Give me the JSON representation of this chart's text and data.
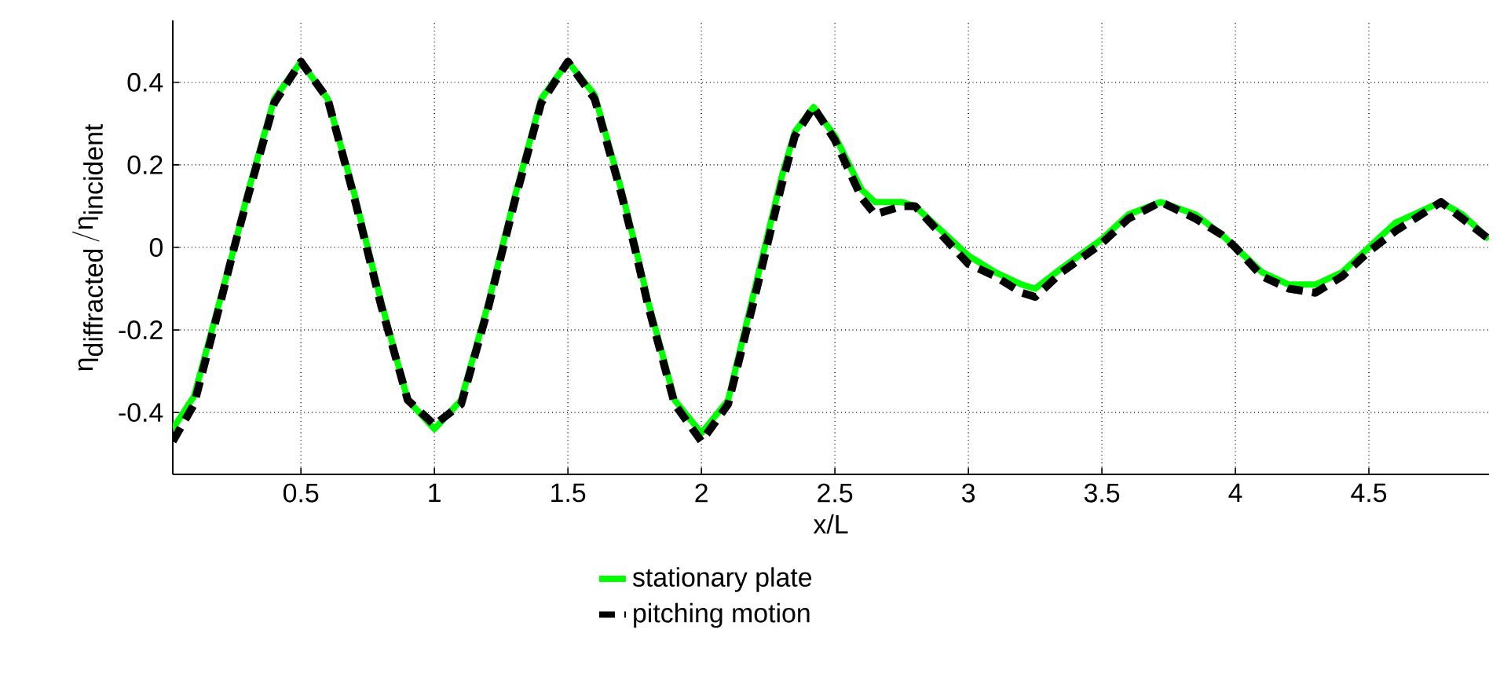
{
  "chart_data": {
    "type": "line",
    "xlabel": "x/L",
    "ylabel": "\\mbox{η}_{\\mbox{diffracted}}\\,/\\mbox{η}_{\\mbox{incident}}",
    "xlim": [
      0.02,
      4.95
    ],
    "ylim": [
      -0.55,
      0.55
    ],
    "xticks": [
      0.5,
      1,
      1.5,
      2,
      2.5,
      3,
      3.5,
      4,
      4.5
    ],
    "yticks": [
      -0.4,
      -0.2,
      0,
      0.2,
      0.4
    ],
    "grid": true,
    "legend": "bottom",
    "series": [
      {
        "name": "stationary plate",
        "color": "#00ff00",
        "line_style": "solid",
        "x": [
          0.02,
          0.1,
          0.2,
          0.25,
          0.3,
          0.4,
          0.5,
          0.6,
          0.7,
          0.75,
          0.8,
          0.9,
          1.0,
          1.1,
          1.2,
          1.25,
          1.3,
          1.4,
          1.5,
          1.6,
          1.7,
          1.75,
          1.8,
          1.9,
          2.0,
          2.1,
          2.2,
          2.3,
          2.35,
          2.42,
          2.5,
          2.6,
          2.65,
          2.75,
          2.8,
          2.9,
          3.0,
          3.1,
          3.2,
          3.25,
          3.35,
          3.5,
          3.6,
          3.72,
          3.85,
          3.95,
          4.0,
          4.1,
          4.2,
          4.3,
          4.4,
          4.5,
          4.6,
          4.77,
          4.85,
          4.95
        ],
        "values": [
          -0.44,
          -0.36,
          -0.12,
          0.0,
          0.13,
          0.36,
          0.45,
          0.36,
          0.13,
          0.0,
          -0.13,
          -0.37,
          -0.44,
          -0.37,
          -0.14,
          -0.01,
          0.12,
          0.36,
          0.45,
          0.37,
          0.14,
          0.01,
          -0.13,
          -0.37,
          -0.45,
          -0.37,
          -0.1,
          0.17,
          0.28,
          0.34,
          0.27,
          0.14,
          0.11,
          0.11,
          0.1,
          0.04,
          -0.02,
          -0.06,
          -0.09,
          -0.1,
          -0.05,
          0.02,
          0.08,
          0.11,
          0.08,
          0.03,
          0.0,
          -0.06,
          -0.09,
          -0.09,
          -0.06,
          0.0,
          0.06,
          0.11,
          0.08,
          0.02
        ]
      },
      {
        "name": "pitching motion",
        "color": "#000000",
        "line_style": "dashed",
        "x": [
          0.02,
          0.1,
          0.2,
          0.25,
          0.3,
          0.4,
          0.5,
          0.6,
          0.7,
          0.75,
          0.8,
          0.9,
          1.0,
          1.1,
          1.2,
          1.25,
          1.3,
          1.4,
          1.5,
          1.6,
          1.7,
          1.75,
          1.8,
          1.9,
          2.0,
          2.1,
          2.2,
          2.3,
          2.35,
          2.42,
          2.5,
          2.6,
          2.65,
          2.75,
          2.8,
          2.9,
          3.0,
          3.1,
          3.2,
          3.25,
          3.35,
          3.5,
          3.6,
          3.72,
          3.85,
          3.95,
          4.0,
          4.1,
          4.2,
          4.3,
          4.4,
          4.5,
          4.6,
          4.77,
          4.85,
          4.95
        ],
        "values": [
          -0.47,
          -0.38,
          -0.13,
          0.0,
          0.12,
          0.35,
          0.45,
          0.36,
          0.12,
          -0.01,
          -0.14,
          -0.37,
          -0.43,
          -0.38,
          -0.15,
          -0.02,
          0.11,
          0.35,
          0.45,
          0.36,
          0.13,
          0.0,
          -0.14,
          -0.38,
          -0.47,
          -0.38,
          -0.12,
          0.15,
          0.27,
          0.34,
          0.26,
          0.12,
          0.08,
          0.1,
          0.1,
          0.03,
          -0.04,
          -0.07,
          -0.11,
          -0.12,
          -0.06,
          0.01,
          0.07,
          0.11,
          0.07,
          0.03,
          0.0,
          -0.07,
          -0.1,
          -0.11,
          -0.07,
          -0.01,
          0.04,
          0.11,
          0.07,
          0.02
        ]
      }
    ]
  }
}
